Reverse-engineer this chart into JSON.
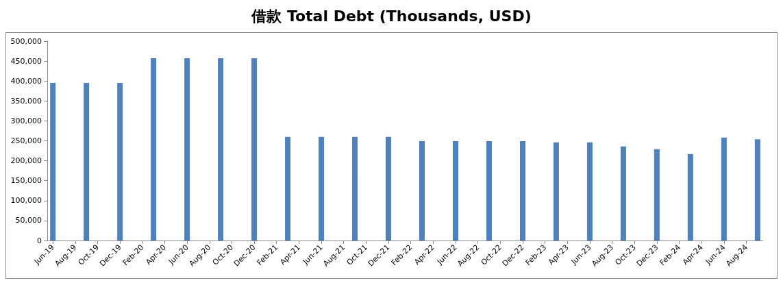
{
  "chart_data": {
    "type": "bar",
    "title": "借款 Total Debt (Thousands, USD)",
    "categories": [
      "Jun-19",
      null,
      "Aug-19",
      null,
      "Oct-19",
      null,
      "Dec-19",
      null,
      "Feb-20",
      null,
      "Apr-20",
      null,
      "Jun-20",
      null,
      "Aug-20",
      null,
      "Oct-20",
      null,
      "Dec-20",
      null,
      "Feb-21",
      null,
      "Apr-21",
      null,
      "Jun-21",
      null,
      "Aug-21",
      null,
      "Oct-21",
      null,
      "Dec-21",
      null,
      "Feb-22",
      null,
      "Apr-22",
      null,
      "Jun-22",
      null,
      "Aug-22",
      null,
      "Oct-22",
      null,
      "Dec-22",
      null,
      "Feb-23",
      null,
      "Apr-23",
      null,
      "Jun-23",
      null,
      "Aug-23",
      null,
      "Oct-23",
      null,
      "Dec-23",
      null,
      "Feb-24",
      null,
      "Apr-24",
      null,
      "Jun-24",
      null,
      "Aug-24",
      null
    ],
    "values": [
      395000,
      null,
      null,
      395000,
      null,
      null,
      395000,
      null,
      null,
      457000,
      null,
      null,
      457000,
      null,
      null,
      457000,
      null,
      null,
      457000,
      null,
      null,
      260000,
      null,
      null,
      260000,
      null,
      null,
      260000,
      null,
      null,
      260000,
      null,
      null,
      249000,
      null,
      null,
      249000,
      null,
      null,
      249000,
      null,
      null,
      249000,
      null,
      null,
      246000,
      null,
      null,
      246000,
      null,
      null,
      236000,
      null,
      null,
      229000,
      null,
      null,
      217000,
      null,
      null,
      258000,
      null,
      null,
      254000
    ],
    "color": "#4f81bd",
    "ylim": [
      0,
      500000
    ],
    "yticks": [
      0,
      {
        "value": 50000,
        "label": "50,000"
      },
      {
        "value": 100000,
        "label": "100,000"
      },
      {
        "value": 150000,
        "label": "150,000"
      },
      {
        "value": 200000,
        "label": "200,000"
      },
      {
        "value": 250000,
        "label": "250,000"
      },
      {
        "value": 300000,
        "label": "300,000"
      },
      {
        "value": 350000,
        "label": "350,000"
      },
      {
        "value": 400000,
        "label": "400,000"
      },
      {
        "value": 450000,
        "label": "450,000"
      },
      {
        "value": 500000,
        "label": "500,000"
      }
    ],
    "grid": false
  }
}
